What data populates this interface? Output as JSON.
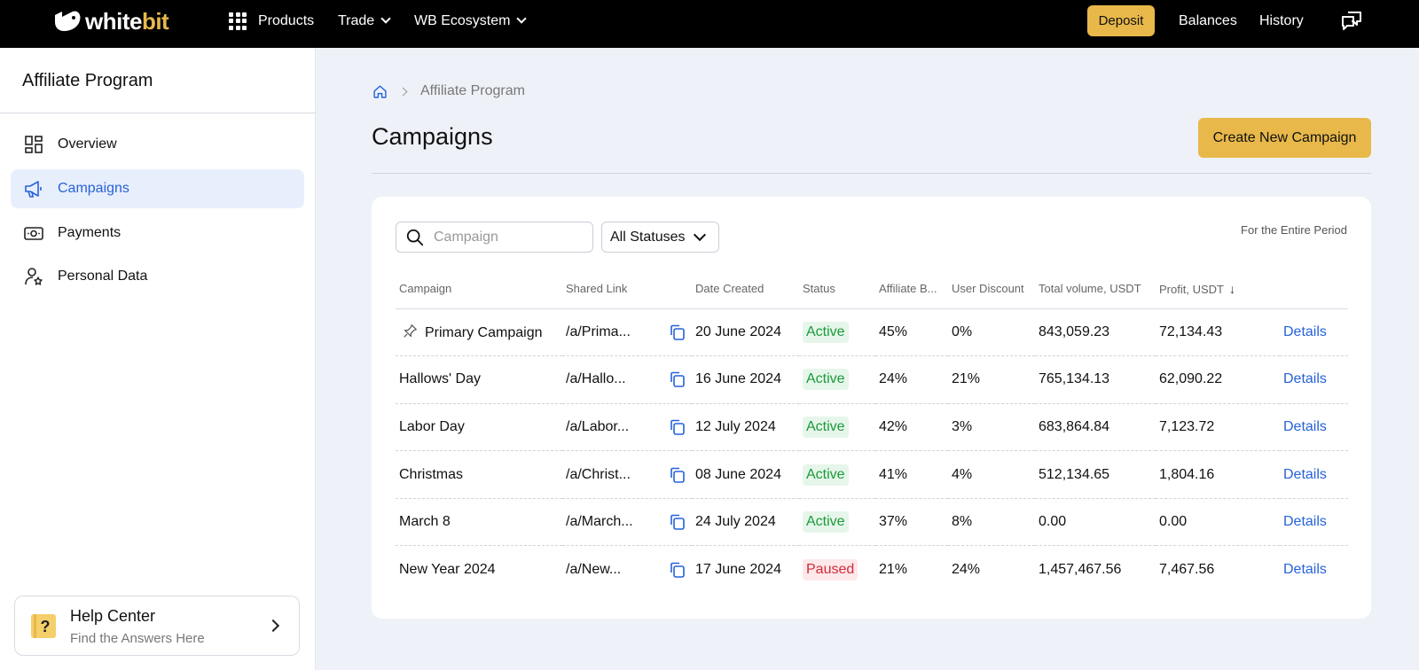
{
  "brand": {
    "logo_text_white": "white",
    "logo_text_gold": "bit",
    "accent": "#e8b84a",
    "link": "#2662d9"
  },
  "topbar": {
    "products": "Products",
    "trade": "Trade",
    "ecosystem": "WB Ecosystem",
    "deposit": "Deposit",
    "balances": "Balances",
    "history": "History"
  },
  "sidebar": {
    "title": "Affiliate Program",
    "items": [
      {
        "label": "Overview",
        "icon": "dashboard-icon"
      },
      {
        "label": "Campaigns",
        "icon": "megaphone-icon",
        "active": true
      },
      {
        "label": "Payments",
        "icon": "cash-icon"
      },
      {
        "label": "Personal Data",
        "icon": "user-star-icon"
      }
    ],
    "help": {
      "title": "Help Center",
      "subtitle": "Find the Answers Here"
    }
  },
  "breadcrumb": {
    "current": "Affiliate Program"
  },
  "page": {
    "title": "Campaigns",
    "create_button": "Create New Campaign"
  },
  "filters": {
    "search_placeholder": "Campaign",
    "status_value": "All Statuses",
    "period": "For the Entire Period"
  },
  "table": {
    "headers": [
      "Campaign",
      "Shared Link",
      "Date Created",
      "Status",
      "Affiliate B...",
      "User Discount",
      "Total volume, USDT",
      "Profit, USDT"
    ],
    "details_label": "Details",
    "rows": [
      {
        "campaign": "Primary Campaign",
        "pinned": true,
        "link": "/a/Prima...",
        "date": "20 June 2024",
        "status": "Active",
        "affiliate": "45%",
        "discount": "0%",
        "volume": "843,059.23",
        "profit": "72,134.43"
      },
      {
        "campaign": "Hallows' Day",
        "link": "/a/Hallo...",
        "date": "16 June 2024",
        "status": "Active",
        "affiliate": "24%",
        "discount": "21%",
        "volume": "765,134.13",
        "profit": "62,090.22"
      },
      {
        "campaign": "Labor Day",
        "link": "/a/Labor...",
        "date": "12 July 2024",
        "status": "Active",
        "affiliate": "42%",
        "discount": "3%",
        "volume": "683,864.84",
        "profit": "7,123.72"
      },
      {
        "campaign": "Christmas",
        "link": "/a/Christ...",
        "date": "08 June 2024",
        "status": "Active",
        "affiliate": "41%",
        "discount": "4%",
        "volume": "512,134.65",
        "profit": "1,804.16"
      },
      {
        "campaign": "March 8",
        "link": "/a/March...",
        "date": "24 July 2024",
        "status": "Active",
        "affiliate": "37%",
        "discount": "8%",
        "volume": "0.00",
        "profit": "0.00"
      },
      {
        "campaign": "New Year 2024",
        "link": "/a/New...",
        "date": "17 June 2024",
        "status": "Paused",
        "affiliate": "21%",
        "discount": "24%",
        "volume": "1,457,467.56",
        "profit": "7,467.56"
      }
    ]
  }
}
